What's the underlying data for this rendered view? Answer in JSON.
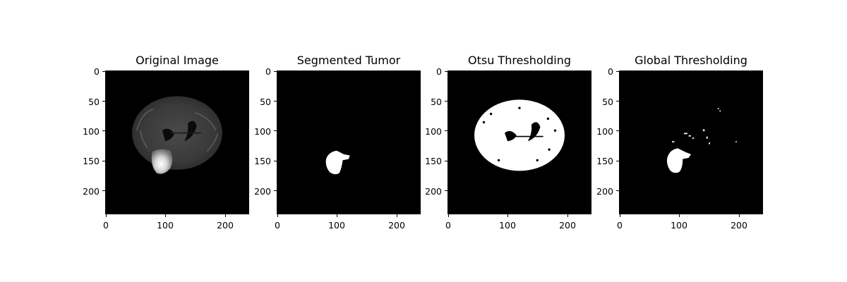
{
  "panels": [
    {
      "title": "Original Image",
      "image": "brain-mri-flair-slice"
    },
    {
      "title": "Segmented Tumor",
      "image": "tumor-mask"
    },
    {
      "title": "Otsu Thresholding",
      "image": "otsu-binary-mask"
    },
    {
      "title": "Global Thresholding",
      "image": "global-binary-mask"
    }
  ],
  "yticks": [
    "0",
    "50",
    "100",
    "150",
    "200"
  ],
  "xticks": [
    "0",
    "100",
    "200"
  ]
}
